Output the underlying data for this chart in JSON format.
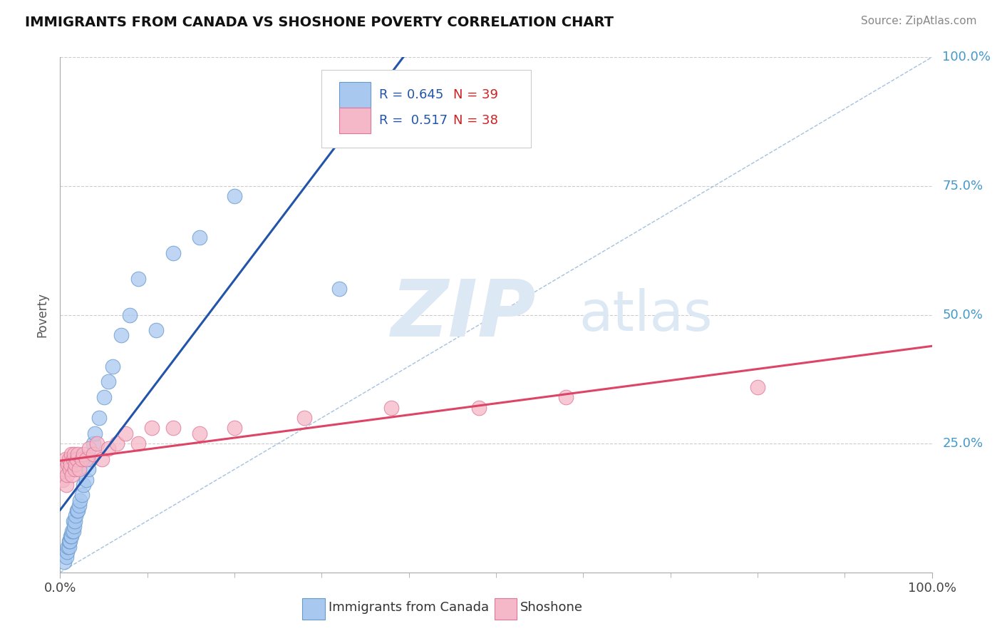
{
  "title": "IMMIGRANTS FROM CANADA VS SHOSHONE POVERTY CORRELATION CHART",
  "source_text": "Source: ZipAtlas.com",
  "ylabel": "Poverty",
  "xlim": [
    0.0,
    1.0
  ],
  "ylim": [
    0.0,
    1.0
  ],
  "blue_R": 0.645,
  "blue_N": 39,
  "pink_R": 0.517,
  "pink_N": 38,
  "blue_color": "#a8c8f0",
  "blue_edge_color": "#6699cc",
  "pink_color": "#f5b8c8",
  "pink_edge_color": "#dd7799",
  "blue_line_color": "#2255aa",
  "pink_line_color": "#dd4466",
  "diag_line_color": "#99bbdd",
  "watermark_color": "#dde8f5",
  "watermark_text": "ZIPatlas",
  "background_color": "#ffffff",
  "grid_color": "#cccccc",
  "blue_x": [
    0.005,
    0.007,
    0.008,
    0.009,
    0.01,
    0.01,
    0.011,
    0.012,
    0.013,
    0.014,
    0.015,
    0.015,
    0.016,
    0.017,
    0.018,
    0.019,
    0.02,
    0.022,
    0.023,
    0.025,
    0.027,
    0.03,
    0.032,
    0.035,
    0.038,
    0.04,
    0.045,
    0.05,
    0.055,
    0.06,
    0.07,
    0.08,
    0.09,
    0.11,
    0.13,
    0.16,
    0.2,
    0.32,
    0.43
  ],
  "blue_y": [
    0.02,
    0.03,
    0.04,
    0.05,
    0.05,
    0.06,
    0.06,
    0.07,
    0.07,
    0.08,
    0.08,
    0.1,
    0.09,
    0.1,
    0.11,
    0.12,
    0.12,
    0.13,
    0.14,
    0.15,
    0.17,
    0.18,
    0.2,
    0.22,
    0.25,
    0.27,
    0.3,
    0.34,
    0.37,
    0.4,
    0.46,
    0.5,
    0.57,
    0.47,
    0.62,
    0.65,
    0.73,
    0.55,
    0.92
  ],
  "pink_x": [
    0.003,
    0.005,
    0.006,
    0.007,
    0.008,
    0.009,
    0.01,
    0.011,
    0.012,
    0.013,
    0.014,
    0.015,
    0.016,
    0.017,
    0.018,
    0.019,
    0.02,
    0.022,
    0.025,
    0.027,
    0.03,
    0.033,
    0.038,
    0.042,
    0.048,
    0.055,
    0.065,
    0.075,
    0.09,
    0.105,
    0.13,
    0.16,
    0.2,
    0.28,
    0.38,
    0.48,
    0.58,
    0.8
  ],
  "pink_y": [
    0.18,
    0.2,
    0.22,
    0.17,
    0.19,
    0.21,
    0.22,
    0.2,
    0.21,
    0.23,
    0.19,
    0.22,
    0.23,
    0.2,
    0.21,
    0.22,
    0.23,
    0.2,
    0.22,
    0.23,
    0.22,
    0.24,
    0.23,
    0.25,
    0.22,
    0.24,
    0.25,
    0.27,
    0.25,
    0.28,
    0.28,
    0.27,
    0.28,
    0.3,
    0.32,
    0.32,
    0.34,
    0.36
  ]
}
